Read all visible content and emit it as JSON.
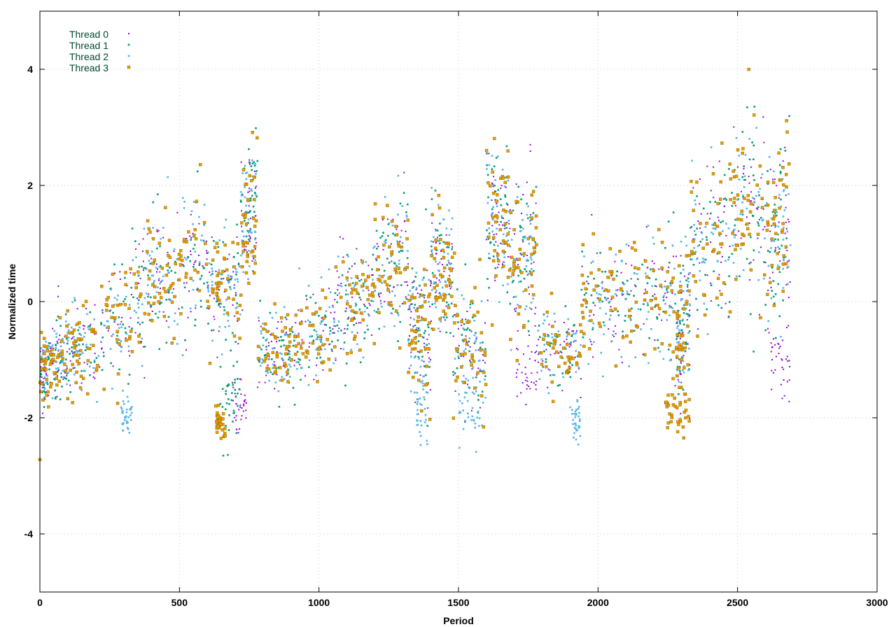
{
  "chart_data": {
    "type": "scatter",
    "title": "",
    "xlabel": "Period",
    "ylabel": "Normalized time",
    "xlim": [
      0,
      3000
    ],
    "ylim": [
      -5,
      5
    ],
    "xticks": [
      0,
      500,
      1000,
      1500,
      2000,
      2500,
      3000
    ],
    "yticks": [
      -4,
      -2,
      0,
      2,
      4
    ],
    "grid": true,
    "legend_position": "top-left",
    "outlier": {
      "x": 0,
      "y": -2.72,
      "series": "Thread 3"
    },
    "segments": [
      {
        "x0": 0,
        "x1": 60,
        "y0": -1.2,
        "y1": -1.0,
        "spread": 0.3
      },
      {
        "x0": 60,
        "x1": 150,
        "y0": -1.0,
        "y1": -0.7,
        "spread": 0.35
      },
      {
        "x0": 150,
        "x1": 320,
        "y0": -0.7,
        "y1": -0.4,
        "spread": 0.45
      },
      {
        "x0": 320,
        "x1": 450,
        "y0": 0.0,
        "y1": 0.5,
        "spread": 0.6
      },
      {
        "x0": 450,
        "x1": 600,
        "y0": 0.3,
        "y1": 0.8,
        "spread": 0.6
      },
      {
        "x0": 600,
        "x1": 720,
        "y0": 0.2,
        "y1": 0.3,
        "spread": 0.55
      },
      {
        "x0": 720,
        "x1": 780,
        "y0": 1.2,
        "y1": 1.6,
        "spread": 0.6
      },
      {
        "x0": 780,
        "x1": 900,
        "y0": -1.0,
        "y1": -0.8,
        "spread": 0.35
      },
      {
        "x0": 900,
        "x1": 1060,
        "y0": -0.7,
        "y1": -0.4,
        "spread": 0.4
      },
      {
        "x0": 1060,
        "x1": 1200,
        "y0": 0.0,
        "y1": 0.1,
        "spread": 0.5
      },
      {
        "x0": 1200,
        "x1": 1320,
        "y0": 0.5,
        "y1": 0.7,
        "spread": 0.55
      },
      {
        "x0": 1320,
        "x1": 1400,
        "y0": -0.3,
        "y1": -0.5,
        "spread": 0.6
      },
      {
        "x0": 1400,
        "x1": 1480,
        "y0": 0.7,
        "y1": 0.5,
        "spread": 0.55
      },
      {
        "x0": 1480,
        "x1": 1600,
        "y0": -0.6,
        "y1": -1.0,
        "spread": 0.6
      },
      {
        "x0": 1600,
        "x1": 1680,
        "y0": 1.5,
        "y1": 1.2,
        "spread": 0.7
      },
      {
        "x0": 1680,
        "x1": 1780,
        "y0": 0.8,
        "y1": 0.9,
        "spread": 0.8
      },
      {
        "x0": 1780,
        "x1": 1940,
        "y0": -0.8,
        "y1": -0.9,
        "spread": 0.35
      },
      {
        "x0": 1940,
        "x1": 2100,
        "y0": -0.1,
        "y1": 0.1,
        "spread": 0.5
      },
      {
        "x0": 2100,
        "x1": 2280,
        "y0": 0.2,
        "y1": 0.1,
        "spread": 0.55
      },
      {
        "x0": 2280,
        "x1": 2330,
        "y0": -0.7,
        "y1": -0.3,
        "spread": 0.6
      },
      {
        "x0": 2330,
        "x1": 2480,
        "y0": 0.9,
        "y1": 1.2,
        "spread": 0.7
      },
      {
        "x0": 2480,
        "x1": 2600,
        "y0": 1.4,
        "y1": 1.6,
        "spread": 0.8
      },
      {
        "x0": 2600,
        "x1": 2690,
        "y0": 0.8,
        "y1": 1.4,
        "spread": 0.8
      }
    ],
    "dips": [
      {
        "series": "Thread 2",
        "x0": 290,
        "x1": 330,
        "y": -2.0,
        "spread": 0.15
      },
      {
        "series": "Thread 3",
        "x0": 630,
        "x1": 665,
        "y": -2.05,
        "spread": 0.15
      },
      {
        "series": "Thread 0",
        "x0": 690,
        "x1": 740,
        "y": -1.8,
        "spread": 0.2
      },
      {
        "series": "Thread 1",
        "x0": 650,
        "x1": 720,
        "y": -1.7,
        "spread": 0.3
      },
      {
        "series": "Thread 2",
        "x0": 1350,
        "x1": 1390,
        "y": -1.9,
        "spread": 0.3
      },
      {
        "series": "Thread 2",
        "x0": 1500,
        "x1": 1580,
        "y": -1.85,
        "spread": 0.25
      },
      {
        "series": "Thread 0",
        "x0": 1700,
        "x1": 1780,
        "y": -1.2,
        "spread": 0.3
      },
      {
        "series": "Thread 2",
        "x0": 1900,
        "x1": 1940,
        "y": -2.0,
        "spread": 0.2
      },
      {
        "series": "Thread 3",
        "x0": 2240,
        "x1": 2330,
        "y": -1.9,
        "spread": 0.2
      },
      {
        "series": "Thread 0",
        "x0": 2620,
        "x1": 2690,
        "y": -1.0,
        "spread": 0.35
      }
    ],
    "series": [
      {
        "name": "Thread 0",
        "color": "#9400d3",
        "marker": "dot",
        "count": 900,
        "seed": 11
      },
      {
        "name": "Thread 1",
        "color": "#009e73",
        "marker": "square-small",
        "count": 900,
        "seed": 23
      },
      {
        "name": "Thread 2",
        "color": "#56b4e9",
        "marker": "square-small",
        "count": 900,
        "seed": 37
      },
      {
        "name": "Thread 3",
        "color": "#e69f00",
        "marker": "square",
        "count": 900,
        "seed": 53
      }
    ]
  }
}
